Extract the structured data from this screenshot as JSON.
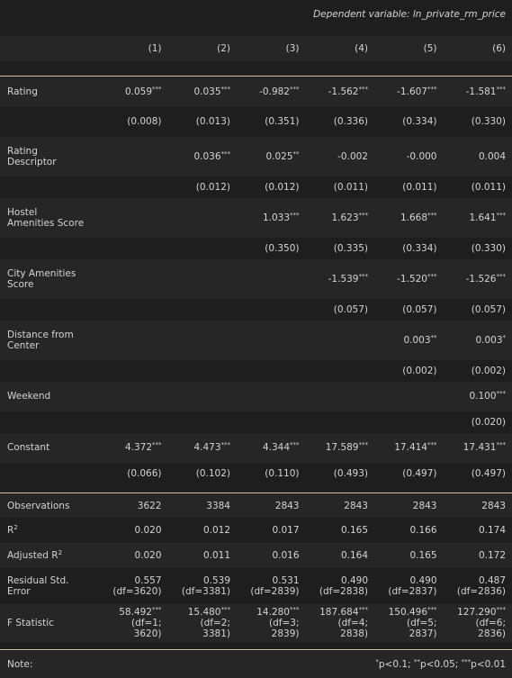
{
  "dependent_variable": "Dependent variable: ln_private_rm_price",
  "columns": [
    "(1)",
    "(2)",
    "(3)",
    "(4)",
    "(5)",
    "(6)"
  ],
  "rows": [
    {
      "label": [
        "Rating"
      ],
      "coef": [
        [
          "0.059",
          "***"
        ],
        [
          "0.035",
          "***"
        ],
        [
          "-0.982",
          "***"
        ],
        [
          "-1.562",
          "***"
        ],
        [
          "-1.607",
          "***"
        ],
        [
          "-1.581",
          "***"
        ]
      ],
      "se": [
        "(0.008)",
        "(0.013)",
        "(0.351)",
        "(0.336)",
        "(0.334)",
        "(0.330)"
      ]
    },
    {
      "label": [
        "Rating",
        "Descriptor"
      ],
      "coef": [
        [
          "",
          ""
        ],
        [
          "0.036",
          "***"
        ],
        [
          "0.025",
          "**"
        ],
        [
          "-0.002",
          ""
        ],
        [
          "-0.000",
          ""
        ],
        [
          "0.004",
          ""
        ]
      ],
      "se": [
        "",
        "(0.012)",
        "(0.012)",
        "(0.011)",
        "(0.011)",
        "(0.011)"
      ]
    },
    {
      "label": [
        "Hostel",
        "Amenities Score"
      ],
      "coef": [
        [
          "",
          ""
        ],
        [
          "",
          ""
        ],
        [
          "1.033",
          "***"
        ],
        [
          "1.623",
          "***"
        ],
        [
          "1.668",
          "***"
        ],
        [
          "1.641",
          "***"
        ]
      ],
      "se": [
        "",
        "",
        "(0.350)",
        "(0.335)",
        "(0.334)",
        "(0.330)"
      ]
    },
    {
      "label": [
        "City Amenities",
        "Score"
      ],
      "coef": [
        [
          "",
          ""
        ],
        [
          "",
          ""
        ],
        [
          "",
          ""
        ],
        [
          "-1.539",
          "***"
        ],
        [
          "-1.520",
          "***"
        ],
        [
          "-1.526",
          "***"
        ]
      ],
      "se": [
        "",
        "",
        "",
        "(0.057)",
        "(0.057)",
        "(0.057)"
      ]
    },
    {
      "label": [
        "Distance from",
        "Center"
      ],
      "coef": [
        [
          "",
          ""
        ],
        [
          "",
          ""
        ],
        [
          "",
          ""
        ],
        [
          "",
          ""
        ],
        [
          "0.003",
          "**"
        ],
        [
          "0.003",
          "*"
        ]
      ],
      "se": [
        "",
        "",
        "",
        "",
        "(0.002)",
        "(0.002)"
      ]
    },
    {
      "label": [
        "Weekend"
      ],
      "coef": [
        [
          "",
          ""
        ],
        [
          "",
          ""
        ],
        [
          "",
          ""
        ],
        [
          "",
          ""
        ],
        [
          "",
          ""
        ],
        [
          "0.100",
          "***"
        ]
      ],
      "se": [
        "",
        "",
        "",
        "",
        "",
        "(0.020)"
      ]
    },
    {
      "label": [
        "Constant"
      ],
      "coef": [
        [
          "4.372",
          "***"
        ],
        [
          "4.473",
          "***"
        ],
        [
          "4.344",
          "***"
        ],
        [
          "17.589",
          "***"
        ],
        [
          "17.414",
          "***"
        ],
        [
          "17.431",
          "***"
        ]
      ],
      "se": [
        "(0.066)",
        "(0.102)",
        "(0.110)",
        "(0.493)",
        "(0.497)",
        "(0.497)"
      ]
    }
  ],
  "stats": {
    "observations": {
      "label": "Observations",
      "values": [
        "3622",
        "3384",
        "2843",
        "2843",
        "2843",
        "2843"
      ]
    },
    "r2": {
      "label": "R",
      "sup": "2",
      "values": [
        "0.020",
        "0.012",
        "0.017",
        "0.165",
        "0.166",
        "0.174"
      ]
    },
    "adj_r2": {
      "label": "Adjusted R",
      "sup": "2",
      "values": [
        "0.020",
        "0.011",
        "0.016",
        "0.164",
        "0.165",
        "0.172"
      ]
    },
    "rse": {
      "label": [
        "Residual Std.",
        "Error"
      ],
      "values": [
        [
          "0.557",
          "(df=3620)"
        ],
        [
          "0.539",
          "(df=3381)"
        ],
        [
          "0.531",
          "(df=2839)"
        ],
        [
          "0.490",
          "(df=2838)"
        ],
        [
          "0.490",
          "(df=2837)"
        ],
        [
          "0.487",
          "(df=2836)"
        ]
      ]
    },
    "f": {
      "label": "F Statistic",
      "values": [
        [
          "58.492",
          "***",
          "(df=1; 3620)"
        ],
        [
          "15.480",
          "***",
          "(df=2; 3381)"
        ],
        [
          "14.280",
          "***",
          "(df=3; 2839)"
        ],
        [
          "187.684",
          "***",
          "(df=4; 2838)"
        ],
        [
          "150.496",
          "***",
          "(df=5; 2837)"
        ],
        [
          "127.290",
          "***",
          "(df=6; 2836)"
        ]
      ]
    }
  },
  "note": {
    "label": "Note:",
    "parts": [
      [
        "*",
        "p<0.1; "
      ],
      [
        "**",
        "p<0.05; "
      ],
      [
        "***",
        "p<0.01"
      ]
    ]
  }
}
